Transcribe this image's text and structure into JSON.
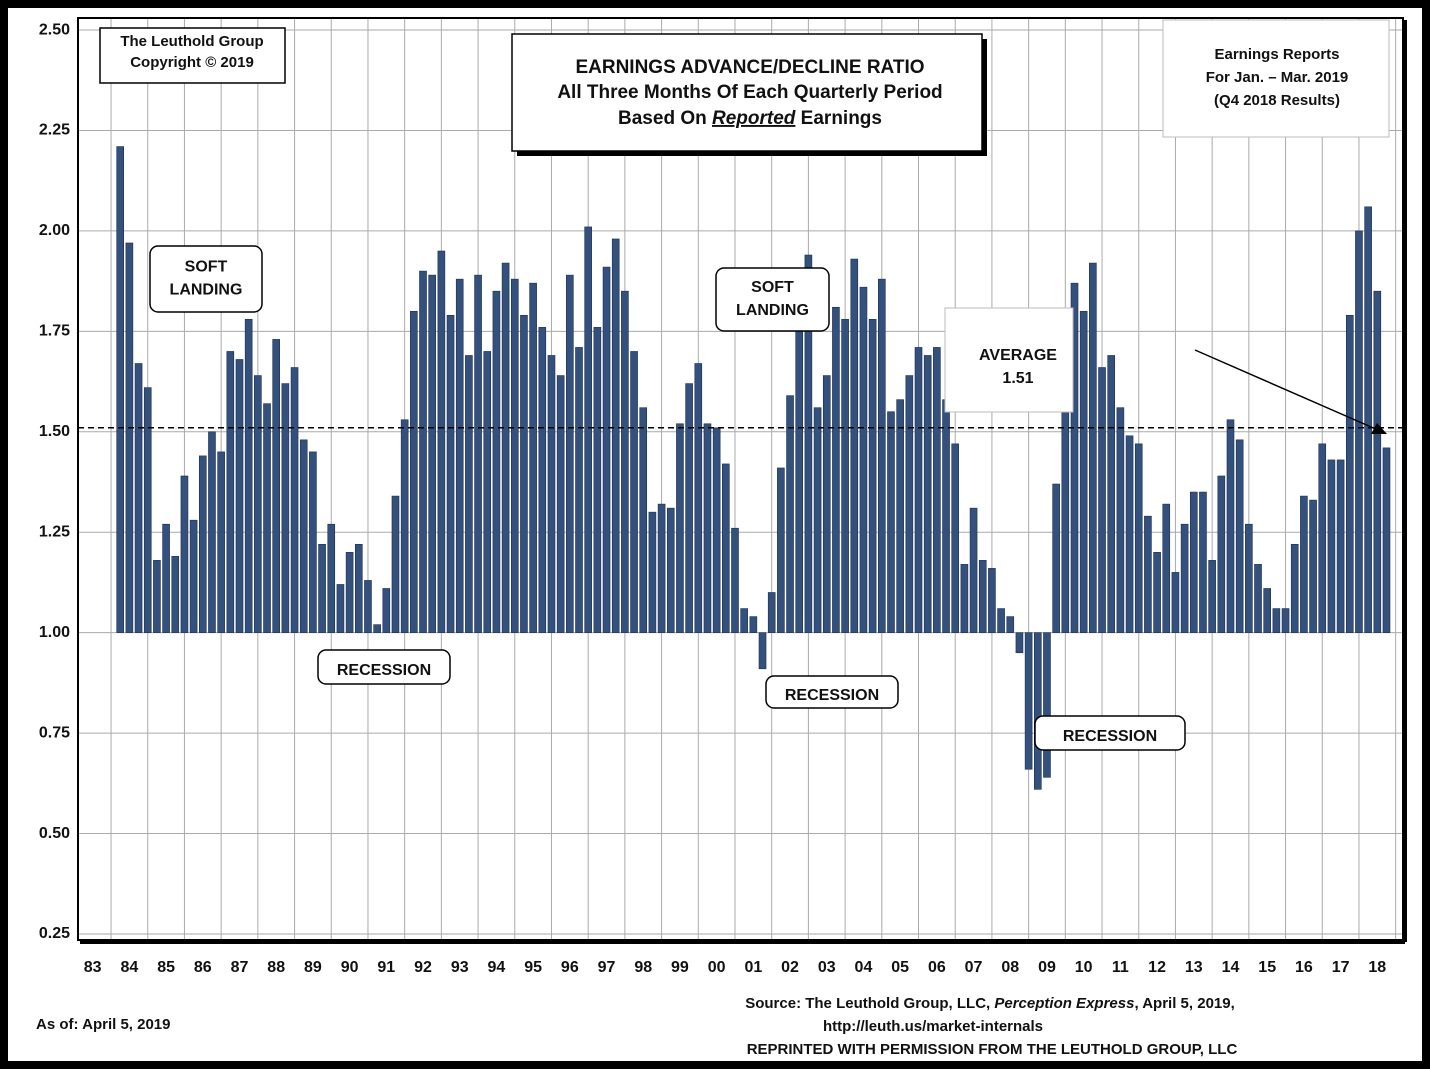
{
  "chart_data": {
    "type": "bar",
    "title": "EARNINGS ADVANCE/DECLINE RATIO",
    "subtitle": "All Three Months Of Each Quarterly Period",
    "subtitle2": {
      "before": "Based On ",
      "emph": "Reported",
      "after": " Earnings"
    },
    "copyright": [
      "The Leuthold Group",
      "Copyright © 2019"
    ],
    "reports_note": [
      "Earnings Reports",
      "For Jan. – Mar.  2019",
      "(Q4 2018 Results)"
    ],
    "annotations": [
      {
        "lines": [
          "SOFT",
          "LANDING"
        ]
      },
      {
        "lines": [
          "SOFT",
          "LANDING"
        ]
      },
      {
        "lines": [
          "RECESSION"
        ]
      },
      {
        "lines": [
          "RECESSION"
        ]
      },
      {
        "lines": [
          "RECESSION"
        ]
      }
    ],
    "average_label": "AVERAGE",
    "average": 1.51,
    "as_of": "As of: April 5, 2019",
    "source": {
      "before": "Source: The Leuthold Group, LLC, ",
      "emph": "Perception Express",
      "after": ", April 5, 2019,",
      "url": "http://leuth.us/market-internals",
      "reprint": "REPRINTED WITH PERMISSION FROM THE LEUTHOLD GROUP, LLC"
    },
    "baseline": 1.0,
    "color": "#34507c",
    "grid": true,
    "x": [
      1983.75,
      1984,
      1984.25,
      1984.5,
      1984.75,
      1985,
      1985.25,
      1985.5,
      1985.75,
      1986,
      1986.25,
      1986.5,
      1986.75,
      1987,
      1987.25,
      1987.5,
      1987.75,
      1988,
      1988.25,
      1988.5,
      1988.75,
      1989,
      1989.25,
      1989.5,
      1989.75,
      1990,
      1990.25,
      1990.5,
      1990.75,
      1991,
      1991.25,
      1991.5,
      1991.75,
      1992,
      1992.25,
      1992.5,
      1992.75,
      1993,
      1993.25,
      1993.5,
      1993.75,
      1994,
      1994.25,
      1994.5,
      1994.75,
      1995,
      1995.25,
      1995.5,
      1995.75,
      1996,
      1996.25,
      1996.5,
      1996.75,
      1997,
      1997.25,
      1997.5,
      1997.75,
      1998,
      1998.25,
      1998.5,
      1998.75,
      1999,
      1999.25,
      1999.5,
      1999.75,
      2000,
      2000.25,
      2000.5,
      2000.75,
      2001,
      2001.25,
      2001.5,
      2001.75,
      2002,
      2002.25,
      2002.5,
      2002.75,
      2003,
      2003.25,
      2003.5,
      2003.75,
      2004,
      2004.25,
      2004.5,
      2004.75,
      2005,
      2005.25,
      2005.5,
      2005.75,
      2006,
      2006.25,
      2006.5,
      2006.75,
      2007,
      2007.25,
      2007.5,
      2007.75,
      2008,
      2008.25,
      2008.5,
      2008.75,
      2009,
      2009.25,
      2009.5,
      2009.75,
      2010,
      2010.25,
      2010.5,
      2010.75,
      2011,
      2011.25,
      2011.5,
      2011.75,
      2012,
      2012.25,
      2012.5,
      2012.75,
      2013,
      2013.25,
      2013.5,
      2013.75,
      2014,
      2014.25,
      2014.5,
      2014.75,
      2015,
      2015.25,
      2015.5,
      2015.75,
      2016,
      2016.25,
      2016.5,
      2016.75,
      2017,
      2017.25,
      2017.5,
      2017.75,
      2018,
      2018.25
    ],
    "values": [
      2.21,
      1.97,
      1.67,
      1.61,
      1.18,
      1.27,
      1.19,
      1.39,
      1.28,
      1.44,
      1.5,
      1.45,
      1.7,
      1.68,
      1.78,
      1.64,
      1.57,
      1.73,
      1.62,
      1.66,
      1.48,
      1.45,
      1.22,
      1.27,
      1.12,
      1.2,
      1.22,
      1.13,
      1.02,
      1.11,
      1.34,
      1.53,
      1.8,
      1.9,
      1.89,
      1.95,
      1.79,
      1.88,
      1.69,
      1.89,
      1.7,
      1.85,
      1.92,
      1.88,
      1.79,
      1.87,
      1.76,
      1.69,
      1.64,
      1.89,
      1.71,
      2.01,
      1.76,
      1.91,
      1.98,
      1.85,
      1.7,
      1.56,
      1.3,
      1.32,
      1.31,
      1.52,
      1.62,
      1.67,
      1.52,
      1.51,
      1.42,
      1.26,
      1.06,
      1.04,
      0.91,
      1.1,
      1.41,
      1.59,
      1.75,
      1.94,
      1.56,
      1.64,
      1.81,
      1.78,
      1.93,
      1.86,
      1.78,
      1.88,
      1.55,
      1.58,
      1.64,
      1.71,
      1.69,
      1.71,
      1.58,
      1.47,
      1.17,
      1.31,
      1.18,
      1.16,
      1.06,
      1.04,
      0.95,
      0.66,
      0.61,
      0.64,
      1.37,
      1.6,
      1.87,
      1.8,
      1.92,
      1.66,
      1.69,
      1.56,
      1.49,
      1.47,
      1.29,
      1.2,
      1.32,
      1.15,
      1.27,
      1.35,
      1.35,
      1.18,
      1.39,
      1.53,
      1.48,
      1.27,
      1.17,
      1.11,
      1.06,
      1.06,
      1.22,
      1.34,
      1.33,
      1.47,
      1.43,
      1.43,
      1.79,
      2.0,
      2.06,
      1.85,
      1.46
    ],
    "xlim": [
      1982.6,
      2018.7
    ],
    "xticks": [
      {
        "value": 1983,
        "label": "83"
      },
      {
        "value": 1984,
        "label": "84"
      },
      {
        "value": 1985,
        "label": "85"
      },
      {
        "value": 1986,
        "label": "86"
      },
      {
        "value": 1987,
        "label": "87"
      },
      {
        "value": 1988,
        "label": "88"
      },
      {
        "value": 1989,
        "label": "89"
      },
      {
        "value": 1990,
        "label": "90"
      },
      {
        "value": 1991,
        "label": "91"
      },
      {
        "value": 1992,
        "label": "92"
      },
      {
        "value": 1993,
        "label": "93"
      },
      {
        "value": 1994,
        "label": "94"
      },
      {
        "value": 1995,
        "label": "95"
      },
      {
        "value": 1996,
        "label": "96"
      },
      {
        "value": 1997,
        "label": "97"
      },
      {
        "value": 1998,
        "label": "98"
      },
      {
        "value": 1999,
        "label": "99"
      },
      {
        "value": 2000,
        "label": "00"
      },
      {
        "value": 2001,
        "label": "01"
      },
      {
        "value": 2002,
        "label": "02"
      },
      {
        "value": 2003,
        "label": "03"
      },
      {
        "value": 2004,
        "label": "04"
      },
      {
        "value": 2005,
        "label": "05"
      },
      {
        "value": 2006,
        "label": "06"
      },
      {
        "value": 2007,
        "label": "07"
      },
      {
        "value": 2008,
        "label": "08"
      },
      {
        "value": 2009,
        "label": "09"
      },
      {
        "value": 2010,
        "label": "10"
      },
      {
        "value": 2011,
        "label": "11"
      },
      {
        "value": 2012,
        "label": "12"
      },
      {
        "value": 2013,
        "label": "13"
      },
      {
        "value": 2014,
        "label": "14"
      },
      {
        "value": 2015,
        "label": "15"
      },
      {
        "value": 2016,
        "label": "16"
      },
      {
        "value": 2017,
        "label": "17"
      },
      {
        "value": 2018,
        "label": "18"
      }
    ],
    "ylim": [
      0.235,
      2.53
    ],
    "yticks": [
      {
        "value": 0.25,
        "label": "0.25"
      },
      {
        "value": 0.5,
        "label": "0.50"
      },
      {
        "value": 0.75,
        "label": "0.75"
      },
      {
        "value": 1,
        "label": "1.00"
      },
      {
        "value": 1.25,
        "label": "1.25"
      },
      {
        "value": 1.5,
        "label": "1.50"
      },
      {
        "value": 1.75,
        "label": "1.75"
      },
      {
        "value": 2,
        "label": "2.00"
      },
      {
        "value": 2.25,
        "label": "2.25"
      },
      {
        "value": 2.5,
        "label": "2.50"
      }
    ]
  }
}
